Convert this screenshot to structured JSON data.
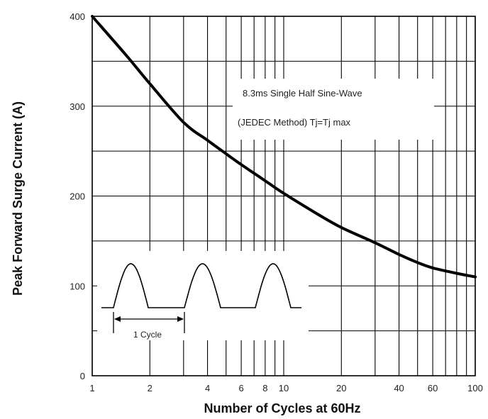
{
  "chart_data": {
    "type": "line",
    "x_scale": "log",
    "xlim": [
      1,
      100
    ],
    "ylim": [
      0,
      400
    ],
    "xlabel": "Number of Cycles at 60Hz",
    "ylabel": "Peak Forward Surge Current (A)",
    "x_ticks": [
      {
        "value": 1,
        "label": "1"
      },
      {
        "value": 2,
        "label": "2"
      },
      {
        "value": 4,
        "label": "4"
      },
      {
        "value": 6,
        "label": "6"
      },
      {
        "value": 8,
        "label": "8"
      },
      {
        "value": 10,
        "label": "10"
      },
      {
        "value": 20,
        "label": "20"
      },
      {
        "value": 40,
        "label": "40"
      },
      {
        "value": 60,
        "label": "60"
      },
      {
        "value": 100,
        "label": "100"
      }
    ],
    "y_ticks": [
      {
        "value": 0,
        "label": "0"
      },
      {
        "value": 100,
        "label": "100"
      },
      {
        "value": 200,
        "label": "200"
      },
      {
        "value": 300,
        "label": "300"
      },
      {
        "value": 400,
        "label": "400"
      }
    ],
    "grid": true,
    "series": [
      {
        "x": [
          1,
          1.5,
          2,
          3,
          4,
          5,
          6,
          8,
          10,
          15,
          20,
          30,
          40,
          50,
          60,
          80,
          100
        ],
        "y": [
          400,
          357,
          325,
          282,
          262,
          247,
          235,
          217,
          203,
          180,
          165,
          148,
          135,
          126,
          120,
          114,
          110
        ]
      }
    ],
    "annotations": [
      "8.3ms Single Half Sine-Wave",
      "(JEDEC Method) Tj=Tj max"
    ],
    "inset_label": "1 Cycle"
  }
}
